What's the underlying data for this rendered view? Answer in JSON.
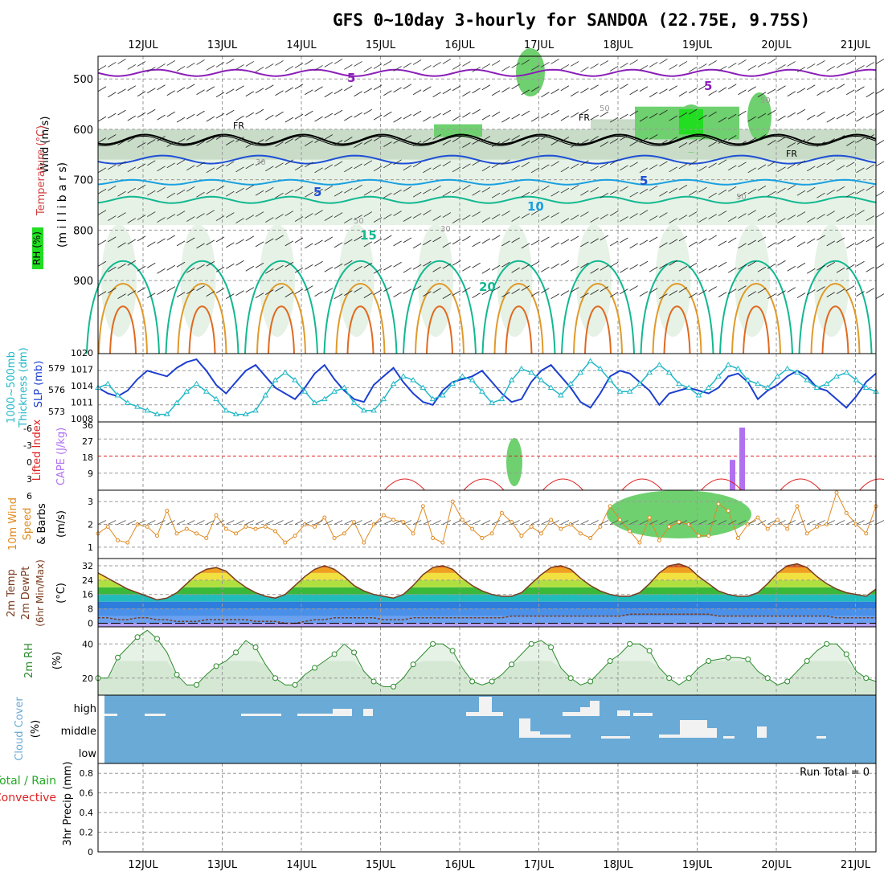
{
  "title": "GFS 0~10day 3-hourly for SANDOA (22.75E, 9.75S)",
  "dates": [
    "12JUL",
    "13JUL",
    "14JUL",
    "15JUL",
    "16JUL",
    "17JUL",
    "18JUL",
    "19JUL",
    "20JUL",
    "21JUL"
  ],
  "colors": {
    "grid": "#9a9a9a",
    "isotherm_purple": "#8a1fb8",
    "isotherm_blue": "#1f4fd6",
    "isotherm_lightblue": "#1aa0e0",
    "isotherm_teal": "#12b891",
    "isotherm_orange": "#e09a2a",
    "freezing": "#000000",
    "rh_light": "#e6f2e6",
    "rh_mid": "#c8dcc8",
    "rh_dark": "#a9c2a9",
    "rh_green": "#6fd06f",
    "rh_bright": "#22dd22",
    "slp": "#1c3fcf",
    "thickness": "#22b8c8",
    "cape": "#b070f0",
    "lifted": "#e02020",
    "wind": "#e08a20",
    "temp": "#7a3d20",
    "rh2m": "#2e8b2e",
    "cloud": "#6aaad6",
    "precip_total": "#22aa22",
    "precip_conv": "#dd2222"
  },
  "panels": {
    "upper": {
      "ylabel_parts": [
        "Wind (m/s)",
        "Temperature (°C)",
        "RH (%)"
      ],
      "ylabel_mb": "(m i l l i b a r s)",
      "yticks": [
        "500",
        "600",
        "700",
        "800",
        "900"
      ],
      "isotherm_labels": [
        "5",
        "5",
        "5",
        "5",
        "10",
        "15",
        "20",
        "FR",
        "FR",
        "FR"
      ],
      "rh_labels": [
        "30",
        "30",
        "50",
        "50",
        "50",
        "50"
      ]
    },
    "slp": {
      "ylabel_a": "1000~500mb",
      "ylabel_b": "Thickness (dm)",
      "ylabel_c": "SLP (mb)",
      "left_ticks": [
        "579",
        "576",
        "573"
      ],
      "right_ticks": [
        "1020",
        "1017",
        "1014",
        "1011",
        "1008"
      ]
    },
    "cape": {
      "ylabel_a": "Lifted Index",
      "ylabel_b": "CAPE (J/kg)",
      "left_ticks": [
        "-6",
        "-3",
        "0",
        "3",
        "6"
      ],
      "right_ticks": [
        "36",
        "27",
        "18",
        "9"
      ]
    },
    "wind": {
      "ylabel_a": "10m Wind",
      "ylabel_b": "Speed",
      "ylabel_c": "& Barbs",
      "ylabel_unit": "(m/s)",
      "ticks": [
        "3",
        "2",
        "1"
      ]
    },
    "temp": {
      "ylabel_a": "2m Temp",
      "ylabel_b": "2m DewPt",
      "ylabel_c": "(6hr Min/Max)",
      "ylabel_unit": "(°C)",
      "ticks": [
        "32",
        "24",
        "16",
        "8",
        "0"
      ]
    },
    "rh": {
      "ylabel_a": "2m RH",
      "ylabel_unit": "(%)",
      "ticks": [
        "40",
        "20"
      ]
    },
    "cloud": {
      "ylabel_a": "Cloud Cover",
      "ylabel_unit": "(%)",
      "levels": [
        "high",
        "middle",
        "low"
      ]
    },
    "precip": {
      "ylabel_a": "Total / Rain",
      "ylabel_b": "Convective",
      "ylabel_c": "3hr Precip (mm)",
      "ticks": [
        "0.8",
        "0.6",
        "0.4",
        "0.2",
        "0"
      ],
      "run_total": "Run Total = 0"
    }
  },
  "chart_data": [
    {
      "type": "line",
      "name": "SLP",
      "y_unit": "mb",
      "ylim": [
        1008,
        1020
      ],
      "values": [
        1014.0,
        1013.0,
        1012.5,
        1013.5,
        1015.5,
        1017.0,
        1016.5,
        1016.0,
        1017.5,
        1018.5,
        1019.0,
        1017.0,
        1014.5,
        1013.0,
        1015.0,
        1017.0,
        1018.0,
        1016.0,
        1014.0,
        1013.0,
        1012.0,
        1014.0,
        1016.5,
        1018.0,
        1015.5,
        1013.5,
        1012.0,
        1011.5,
        1014.5,
        1016.0,
        1017.5,
        1015.0,
        1013.0,
        1011.5,
        1011.0,
        1013.5,
        1015.0,
        1015.5,
        1016.0,
        1017.0,
        1015.0,
        1013.0,
        1011.5,
        1012.0,
        1015.0,
        1017.0,
        1018.0,
        1016.0,
        1014.0,
        1011.5,
        1010.5,
        1013.0,
        1016.0,
        1017.0,
        1016.5,
        1015.0,
        1013.5,
        1011.0,
        1013.0,
        1013.5,
        1014.0,
        1013.5,
        1013.0,
        1014.0,
        1016.0,
        1016.5,
        1015.0,
        1012.0,
        1013.5,
        1014.5,
        1016.0,
        1017.0,
        1016.0,
        1014.0,
        1013.5,
        1012.0,
        1010.5,
        1012.5,
        1015.0,
        1016.5
      ]
    },
    {
      "type": "line",
      "name": "1000~500mb Thickness",
      "y_unit": "dm",
      "ylim": [
        571.5,
        580.5
      ],
      "values": [
        576.0,
        576.5,
        575.0,
        574.0,
        573.5,
        573.0,
        572.5,
        572.5,
        574.0,
        575.5,
        576.5,
        575.5,
        574.5,
        573.0,
        572.5,
        572.5,
        573.0,
        575.0,
        577.0,
        578.0,
        577.0,
        575.5,
        574.0,
        574.5,
        575.5,
        576.0,
        574.0,
        573.0,
        573.0,
        574.5,
        576.5,
        577.5,
        577.0,
        576.0,
        574.5,
        575.0,
        576.5,
        577.5,
        577.0,
        575.5,
        574.0,
        574.5,
        577.0,
        578.5,
        578.0,
        577.0,
        576.0,
        575.0,
        576.5,
        578.0,
        579.5,
        578.5,
        577.0,
        575.5,
        575.5,
        576.5,
        578.0,
        579.0,
        578.0,
        576.5,
        576.0,
        575.0,
        576.0,
        577.5,
        579.0,
        578.5,
        577.0,
        576.5,
        576.0,
        577.5,
        578.5,
        578.0,
        577.0,
        576.0,
        576.5,
        577.5,
        578.0,
        577.0,
        576.0,
        575.5
      ]
    },
    {
      "type": "bar",
      "name": "CAPE",
      "y_unit": "J/kg",
      "ylim": [
        0,
        36
      ],
      "bars": [
        {
          "x": "19JUL 12Z",
          "value": 16
        },
        {
          "x": "19JUL 15Z",
          "value": 33
        }
      ]
    },
    {
      "type": "line",
      "name": "10m Wind Speed",
      "y_unit": "m/s",
      "ylim": [
        0.5,
        3.5
      ],
      "values": [
        1.6,
        1.9,
        1.3,
        1.2,
        2.0,
        1.9,
        1.5,
        2.6,
        1.6,
        1.8,
        1.6,
        1.4,
        2.4,
        1.8,
        1.6,
        1.9,
        1.8,
        1.9,
        1.7,
        1.2,
        1.5,
        2.0,
        1.9,
        2.3,
        1.4,
        1.6,
        2.1,
        1.2,
        2.0,
        2.4,
        2.2,
        2.1,
        1.6,
        2.8,
        1.4,
        1.2,
        3.0,
        2.2,
        1.8,
        1.4,
        1.6,
        2.5,
        2.1,
        1.5,
        1.9,
        1.6,
        2.2,
        1.8,
        2.0,
        1.6,
        1.4,
        1.9,
        2.8,
        2.2,
        1.7,
        1.2,
        2.3,
        1.3,
        1.9,
        2.1,
        2.0,
        1.5,
        1.5,
        2.9,
        2.6,
        1.4,
        2.0,
        2.3,
        1.8,
        2.2,
        1.8,
        2.8,
        1.6,
        1.9,
        2.0,
        3.4,
        2.5,
        2.0,
        1.6,
        2.8
      ]
    },
    {
      "type": "area",
      "name": "2m Temp",
      "y_unit": "°C",
      "ylim": [
        -2,
        36
      ],
      "values": [
        28,
        25,
        22,
        19,
        17,
        15,
        13,
        14,
        17,
        22,
        27,
        30,
        31,
        29,
        24,
        20,
        17,
        15,
        14,
        16,
        21,
        26,
        30,
        32,
        30,
        26,
        21,
        18,
        16,
        15,
        14,
        16,
        21,
        27,
        31,
        32,
        30,
        25,
        21,
        18,
        16,
        15,
        15,
        17,
        22,
        27,
        31,
        32,
        30,
        25,
        21,
        18,
        16,
        15,
        15,
        17,
        22,
        28,
        32,
        33,
        31,
        26,
        22,
        18,
        16,
        15,
        15,
        17,
        22,
        28,
        32,
        33,
        31,
        26,
        22,
        19,
        17,
        16,
        15,
        19
      ]
    },
    {
      "type": "line",
      "name": "2m DewPt",
      "y_unit": "°C",
      "values": [
        3,
        3,
        2,
        2,
        3,
        3,
        2,
        2,
        1,
        1,
        1,
        2,
        2,
        2,
        2,
        2,
        1,
        1,
        1,
        0,
        0,
        1,
        2,
        2,
        3,
        3,
        3,
        3,
        3,
        2,
        2,
        2,
        3,
        3,
        3,
        3,
        3,
        3,
        3,
        3,
        3,
        3,
        4,
        4,
        4,
        4,
        4,
        4,
        4,
        4,
        4,
        4,
        4,
        4,
        5,
        5,
        5,
        5,
        5,
        5,
        5,
        5,
        5,
        4,
        4,
        4,
        4,
        4,
        4,
        4,
        4,
        4,
        4,
        4,
        4,
        3,
        3,
        3,
        3,
        3
      ]
    },
    {
      "type": "area",
      "name": "2m RH",
      "y_unit": "%",
      "ylim": [
        10,
        50
      ],
      "values": [
        20,
        20,
        32,
        38,
        44,
        48,
        43,
        35,
        22,
        16,
        16,
        22,
        27,
        30,
        35,
        42,
        38,
        28,
        20,
        16,
        16,
        22,
        26,
        30,
        34,
        40,
        35,
        24,
        18,
        15,
        15,
        20,
        28,
        34,
        40,
        40,
        36,
        26,
        18,
        16,
        18,
        22,
        28,
        34,
        40,
        42,
        38,
        26,
        20,
        16,
        18,
        24,
        30,
        34,
        40,
        40,
        36,
        26,
        20,
        16,
        20,
        26,
        30,
        31,
        32,
        32,
        31,
        24,
        20,
        16,
        18,
        24,
        30,
        36,
        40,
        40,
        34,
        24,
        20,
        18
      ]
    },
    {
      "type": "bar",
      "name": "Cloud Cover",
      "categories": [
        "high",
        "middle",
        "low"
      ],
      "events": [
        {
          "level": "high",
          "day": "16JUL",
          "value_pct": 65
        },
        {
          "level": "high",
          "day": "17JUL",
          "value_pct": 40
        },
        {
          "level": "middle",
          "day": "17JUL",
          "value_pct": 55
        },
        {
          "level": "middle",
          "day": "19JUL",
          "value_pct": 70
        }
      ]
    },
    {
      "type": "bar",
      "name": "3hr Precip",
      "y_unit": "mm",
      "ylim": [
        0,
        0.9
      ],
      "values": []
    }
  ]
}
